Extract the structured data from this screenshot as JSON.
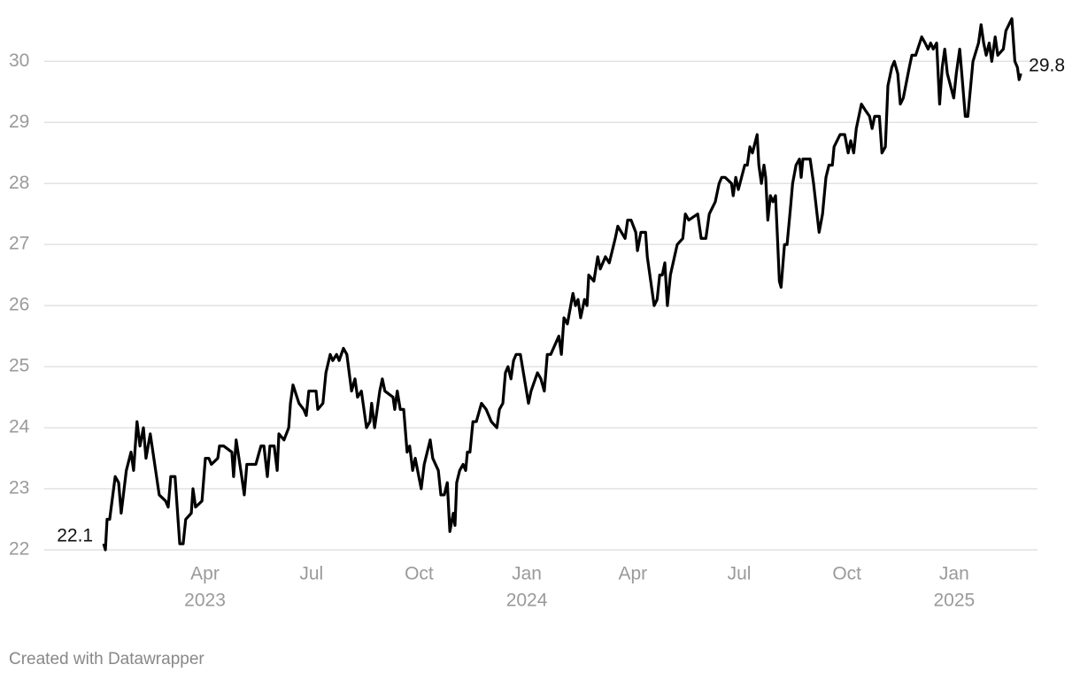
{
  "chart_data": {
    "type": "line",
    "color": "#000000",
    "grid": true,
    "credit": "Created with Datawrapper",
    "xlim": [
      2022.871,
      2025.195
    ],
    "ylim": [
      22,
      30.7
    ],
    "yticks": [
      22,
      23,
      24,
      25,
      26,
      27,
      28,
      29,
      30
    ],
    "xticks": [
      {
        "value": 2023.247,
        "label": "Apr",
        "year": "2023"
      },
      {
        "value": 2023.496,
        "label": "Jul"
      },
      {
        "value": 2023.748,
        "label": "Oct"
      },
      {
        "value": 2024.0,
        "label": "Jan",
        "year": "2024"
      },
      {
        "value": 2024.248,
        "label": "Apr"
      },
      {
        "value": 2024.497,
        "label": "Jul"
      },
      {
        "value": 2024.749,
        "label": "Oct"
      },
      {
        "value": 2025.0,
        "label": "Jan",
        "year": "2025"
      }
    ],
    "x": [
      2023.01,
      2023.014,
      2023.018,
      2023.024,
      2023.037,
      2023.045,
      2023.051,
      2023.063,
      2023.074,
      2023.08,
      2023.088,
      2023.095,
      2023.103,
      2023.109,
      2023.119,
      2023.14,
      2023.155,
      2023.161,
      2023.167,
      2023.177,
      2023.188,
      2023.196,
      2023.202,
      2023.215,
      2023.219,
      2023.225,
      2023.24,
      2023.248,
      2023.256,
      2023.262,
      2023.277,
      2023.281,
      2023.291,
      2023.31,
      2023.314,
      2023.32,
      2023.333,
      2023.339,
      2023.345,
      2023.366,
      2023.378,
      2023.385,
      2023.393,
      2023.399,
      2023.409,
      2023.416,
      2023.42,
      2023.432,
      2023.443,
      2023.447,
      2023.453,
      2023.467,
      2023.478,
      2023.484,
      2023.49,
      2023.507,
      2023.511,
      2023.523,
      2023.53,
      2023.54,
      2023.546,
      2023.555,
      2023.561,
      2023.571,
      2023.579,
      2023.59,
      2023.598,
      2023.604,
      2023.613,
      2023.625,
      2023.633,
      2023.637,
      2023.644,
      2023.656,
      2023.662,
      2023.668,
      2023.687,
      2023.691,
      2023.697,
      2023.704,
      2023.712,
      2023.72,
      2023.726,
      2023.733,
      2023.739,
      2023.753,
      2023.76,
      2023.774,
      2023.78,
      2023.793,
      2023.799,
      2023.807,
      2023.814,
      2023.82,
      2023.828,
      2023.832,
      2023.836,
      2023.843,
      2023.851,
      2023.857,
      2023.861,
      2023.867,
      2023.874,
      2023.882,
      2023.894,
      2023.905,
      2023.917,
      2023.93,
      2023.936,
      2023.944,
      2023.95,
      2023.956,
      2023.963,
      2023.969,
      2023.975,
      2023.985,
      2024.004,
      2024.01,
      2024.025,
      2024.033,
      2024.041,
      2024.048,
      2024.056,
      2024.075,
      2024.081,
      2024.087,
      2024.095,
      2024.108,
      2024.114,
      2024.12,
      2024.126,
      2024.135,
      2024.141,
      2024.145,
      2024.157,
      2024.166,
      2024.172,
      2024.184,
      2024.193,
      2024.207,
      2024.213,
      2024.23,
      2024.236,
      2024.244,
      2024.255,
      2024.259,
      2024.267,
      2024.278,
      2024.282,
      2024.292,
      2024.298,
      2024.305,
      2024.311,
      2024.317,
      2024.323,
      2024.329,
      2024.336,
      2024.352,
      2024.365,
      2024.371,
      2024.379,
      2024.4,
      2024.408,
      2024.419,
      2024.427,
      2024.441,
      2024.45,
      2024.456,
      2024.464,
      2024.479,
      2024.483,
      2024.489,
      2024.495,
      2024.51,
      2024.516,
      2024.522,
      2024.528,
      2024.539,
      2024.543,
      2024.549,
      2024.555,
      2024.559,
      2024.564,
      2024.57,
      2024.576,
      2024.582,
      2024.586,
      2024.591,
      2024.595,
      2024.603,
      2024.609,
      2024.617,
      2024.622,
      2024.63,
      2024.638,
      2024.642,
      2024.646,
      2024.663,
      2024.671,
      2024.684,
      2024.692,
      2024.7,
      2024.707,
      2024.715,
      2024.719,
      2024.733,
      2024.744,
      2024.752,
      2024.758,
      2024.765,
      2024.771,
      2024.783,
      2024.792,
      2024.802,
      2024.808,
      2024.814,
      2024.825,
      2024.831,
      2024.839,
      2024.845,
      2024.854,
      2024.86,
      2024.868,
      2024.874,
      2024.881,
      2024.895,
      2024.901,
      2024.91,
      2024.924,
      2024.932,
      2024.939,
      2024.945,
      2024.951,
      2024.959,
      2024.966,
      2024.972,
      2024.978,
      2024.984,
      2024.999,
      2025.005,
      2025.013,
      2025.019,
      2025.026,
      2025.032,
      2025.044,
      2025.057,
      2025.063,
      2025.069,
      2025.075,
      2025.082,
      2025.088,
      2025.096,
      2025.102,
      2025.115,
      2025.121,
      2025.135,
      2025.142,
      2025.148,
      2025.152,
      2025.156
    ],
    "values": [
      22.1,
      22.0,
      22.5,
      22.5,
      23.2,
      23.1,
      22.6,
      23.3,
      23.6,
      23.3,
      24.1,
      23.7,
      24.0,
      23.5,
      23.9,
      22.9,
      22.8,
      22.7,
      23.2,
      23.2,
      22.1,
      22.1,
      22.5,
      22.6,
      23.0,
      22.7,
      22.8,
      23.5,
      23.5,
      23.4,
      23.5,
      23.7,
      23.7,
      23.6,
      23.2,
      23.8,
      23.2,
      22.9,
      23.4,
      23.4,
      23.7,
      23.7,
      23.2,
      23.7,
      23.7,
      23.3,
      23.9,
      23.8,
      24.0,
      24.4,
      24.7,
      24.4,
      24.3,
      24.2,
      24.6,
      24.6,
      24.3,
      24.4,
      24.9,
      25.2,
      25.1,
      25.2,
      25.1,
      25.3,
      25.2,
      24.6,
      24.8,
      24.5,
      24.6,
      24.0,
      24.1,
      24.4,
      24.0,
      24.6,
      24.8,
      24.6,
      24.5,
      24.3,
      24.6,
      24.3,
      24.3,
      23.6,
      23.7,
      23.3,
      23.5,
      23.0,
      23.4,
      23.8,
      23.5,
      23.3,
      22.9,
      22.9,
      23.1,
      22.3,
      22.6,
      22.4,
      23.1,
      23.3,
      23.4,
      23.3,
      23.6,
      23.6,
      24.1,
      24.1,
      24.4,
      24.3,
      24.1,
      24.0,
      24.3,
      24.4,
      24.9,
      25.0,
      24.8,
      25.1,
      25.2,
      25.2,
      24.4,
      24.6,
      24.9,
      24.8,
      24.6,
      25.2,
      25.2,
      25.5,
      25.2,
      25.8,
      25.7,
      26.2,
      26.0,
      26.1,
      25.8,
      26.1,
      26.0,
      26.5,
      26.4,
      26.8,
      26.6,
      26.8,
      26.7,
      27.1,
      27.3,
      27.1,
      27.4,
      27.4,
      27.2,
      26.9,
      27.2,
      27.2,
      26.8,
      26.3,
      26.0,
      26.1,
      26.5,
      26.5,
      26.7,
      26.0,
      26.5,
      27.0,
      27.1,
      27.5,
      27.4,
      27.5,
      27.1,
      27.1,
      27.5,
      27.7,
      28.0,
      28.1,
      28.1,
      28.0,
      27.8,
      28.1,
      27.9,
      28.3,
      28.3,
      28.6,
      28.5,
      28.8,
      28.3,
      28.0,
      28.3,
      28.1,
      27.4,
      27.8,
      27.7,
      27.8,
      27.2,
      26.4,
      26.3,
      27.0,
      27.0,
      27.6,
      28.0,
      28.3,
      28.4,
      28.1,
      28.4,
      28.4,
      28.0,
      27.2,
      27.5,
      28.1,
      28.3,
      28.3,
      28.6,
      28.8,
      28.8,
      28.5,
      28.7,
      28.5,
      28.9,
      29.3,
      29.2,
      29.1,
      28.9,
      29.1,
      29.1,
      28.5,
      28.6,
      29.6,
      29.9,
      30.0,
      29.8,
      29.3,
      29.4,
      29.9,
      30.1,
      30.1,
      30.4,
      30.3,
      30.2,
      30.3,
      30.2,
      30.3,
      29.3,
      29.9,
      30.2,
      29.8,
      29.4,
      29.8,
      30.2,
      29.7,
      29.1,
      29.1,
      30.0,
      30.3,
      30.6,
      30.3,
      30.1,
      30.3,
      30.0,
      30.4,
      30.1,
      30.2,
      30.5,
      30.7,
      30.0,
      29.9,
      29.7,
      29.8
    ]
  }
}
